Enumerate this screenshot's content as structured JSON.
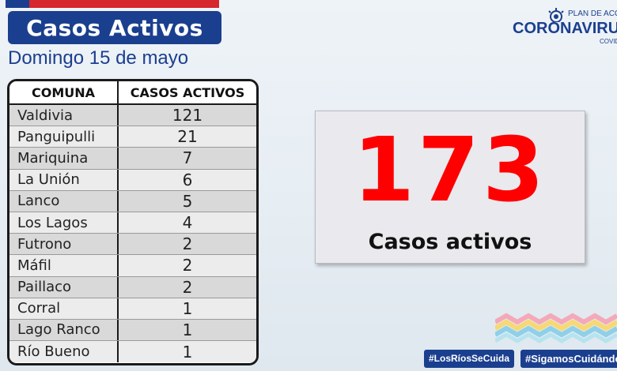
{
  "header": {
    "title": "Casos Activos",
    "date": "Domingo 15 de mayo"
  },
  "logo": {
    "plan_text": "PLAN DE ACCIÓN",
    "brand": "CORONAVIRUS",
    "sub": "COVID"
  },
  "table": {
    "headers": [
      "COMUNA",
      "CASOS ACTIVOS"
    ],
    "rows": [
      {
        "comuna": "Valdivia",
        "casos": "121"
      },
      {
        "comuna": "Panguipulli",
        "casos": "21"
      },
      {
        "comuna": "Mariquina",
        "casos": "7"
      },
      {
        "comuna": "La Unión",
        "casos": "6"
      },
      {
        "comuna": "Lanco",
        "casos": "5"
      },
      {
        "comuna": "Los Lagos",
        "casos": "4"
      },
      {
        "comuna": "Futrono",
        "casos": "2"
      },
      {
        "comuna": "Máfil",
        "casos": "2"
      },
      {
        "comuna": "Paillaco",
        "casos": "2"
      },
      {
        "comuna": "Corral",
        "casos": "1"
      },
      {
        "comuna": "Lago Ranco",
        "casos": "1"
      },
      {
        "comuna": "Río Bueno",
        "casos": "1"
      }
    ]
  },
  "total": {
    "number": "173",
    "label": "Casos activos"
  },
  "hashtags": [
    "#LosRíosSeCuida",
    "#SigamosCuidándonos"
  ],
  "colors": {
    "brand_blue": "#1b3f8f",
    "flag_red": "#d6262e",
    "total_red": "#ff0000"
  }
}
